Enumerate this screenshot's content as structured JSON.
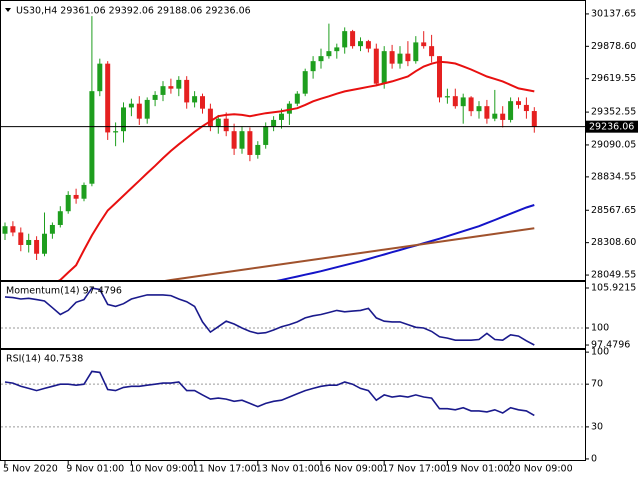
{
  "chart_data": [
    {
      "type": "candlestick",
      "title": "US30,H4  29361.06 29392.06 29188.06 29236.06",
      "categories": [
        "5 Nov 2020",
        null,
        null,
        null,
        null,
        null,
        null,
        null,
        "9 Nov 01:00",
        null,
        null,
        null,
        null,
        null,
        null,
        null,
        "10 Nov 09:00",
        null,
        null,
        null,
        null,
        null,
        null,
        null,
        "11 Nov 17:00",
        null,
        null,
        null,
        null,
        null,
        null,
        null,
        "13 Nov 01:00",
        null,
        null,
        null,
        null,
        null,
        null,
        null,
        "16 Nov 09:00",
        null,
        null,
        null,
        null,
        null,
        null,
        null,
        "17 Nov 17:00",
        null,
        null,
        null,
        null,
        null,
        null,
        null,
        "19 Nov 01:00",
        null,
        null,
        null,
        null,
        null,
        null,
        null,
        "20 Nov 09:00",
        null,
        null,
        null
      ],
      "open": [
        28380,
        28440,
        28390,
        28290,
        28330,
        28220,
        28380,
        28450,
        28560,
        28690,
        28660,
        28780,
        29520,
        29740,
        29190,
        29200,
        29390,
        29420,
        29300,
        29450,
        29490,
        29560,
        29540,
        29610,
        29430,
        29480,
        29380,
        29240,
        29300,
        29200,
        29060,
        29200,
        29010,
        29090,
        29240,
        29290,
        29340,
        29420,
        29500,
        29680,
        29760,
        29800,
        29840,
        29870,
        30000,
        29880,
        29920,
        29860,
        29580,
        29840,
        29740,
        29820,
        29760,
        29910,
        29880,
        29800,
        29470,
        29480,
        29400,
        29470,
        29360,
        29400,
        29300,
        29340,
        29290,
        29440,
        29410,
        29361.06
      ],
      "high": [
        28470,
        28480,
        28430,
        28380,
        28360,
        28550,
        28470,
        28600,
        28720,
        28740,
        28790,
        30120,
        29780,
        29760,
        29270,
        29430,
        29460,
        29480,
        29470,
        29520,
        29600,
        29620,
        29640,
        29640,
        29520,
        29500,
        29420,
        29330,
        29350,
        29260,
        29240,
        29230,
        29120,
        29270,
        29320,
        29380,
        29440,
        29520,
        29700,
        29800,
        29860,
        30060,
        29900,
        30030,
        30010,
        29950,
        29930,
        29900,
        29880,
        29890,
        29880,
        29920,
        29960,
        30000,
        29970,
        29800,
        29540,
        29540,
        29500,
        29480,
        29440,
        29450,
        29530,
        29400,
        29470,
        29470,
        29470,
        29392.06
      ],
      "low": [
        28330,
        28360,
        28240,
        28230,
        28170,
        28200,
        28340,
        28430,
        28540,
        28620,
        28640,
        28760,
        29480,
        29130,
        29080,
        29110,
        29320,
        29250,
        29260,
        29400,
        29440,
        29500,
        29480,
        29380,
        29390,
        29340,
        29200,
        29180,
        29160,
        29010,
        29020,
        28960,
        28980,
        29060,
        29200,
        29220,
        29250,
        29400,
        29480,
        29620,
        29700,
        29780,
        29780,
        29820,
        29860,
        29840,
        29830,
        29560,
        29540,
        29700,
        29700,
        29720,
        29740,
        29860,
        29750,
        29430,
        29420,
        29380,
        29260,
        29320,
        29300,
        29260,
        29280,
        29230,
        29270,
        29380,
        29300,
        29188.06
      ],
      "close": [
        28440,
        28390,
        28290,
        28330,
        28220,
        28380,
        28450,
        28560,
        28690,
        28660,
        28770,
        29520,
        29740,
        29190,
        29200,
        29390,
        29420,
        29300,
        29450,
        29490,
        29560,
        29540,
        29610,
        29430,
        29480,
        29380,
        29240,
        29300,
        29200,
        29060,
        29200,
        29010,
        29090,
        29240,
        29290,
        29340,
        29420,
        29500,
        29680,
        29760,
        29800,
        29840,
        29870,
        30000,
        29880,
        29920,
        29860,
        29580,
        29840,
        29740,
        29820,
        29760,
        29910,
        29880,
        29800,
        29470,
        29480,
        29400,
        29470,
        29360,
        29400,
        29300,
        29340,
        29290,
        29440,
        29410,
        29361.06,
        29236.06
      ],
      "up_color": "#1e9e1e",
      "down_color": "#e52020",
      "overlays": [
        {
          "color": "#e81010",
          "values": [
            27800,
            27830,
            27860,
            27890,
            27920,
            27950,
            27980,
            28010,
            28070,
            28128,
            28250,
            28367,
            28470,
            28566,
            28625,
            28685,
            28745,
            28804,
            28865,
            28923,
            28985,
            29042,
            29095,
            29145,
            29195,
            29240,
            29280,
            29320,
            29330,
            29336,
            29330,
            29320,
            29332,
            29344,
            29352,
            29360,
            29372,
            29384,
            29410,
            29439,
            29460,
            29479,
            29500,
            29518,
            29530,
            29542,
            29555,
            29566,
            29582,
            29598,
            29618,
            29637,
            29680,
            29717,
            29740,
            29756,
            29750,
            29741,
            29718,
            29693,
            29665,
            29637,
            29618,
            29598,
            29570,
            29542,
            29530,
            29518
          ]
        },
        {
          "color": "#1414c8",
          "values": [
            27590,
            27602,
            27614,
            27626,
            27638,
            27650,
            27662,
            27674,
            27686,
            27698,
            27710,
            27722,
            27734,
            27746,
            27758,
            27770,
            27782,
            27794,
            27806,
            27818,
            27830,
            27842,
            27854,
            27866,
            27878,
            27890,
            27902,
            27914,
            27926,
            27938,
            27950,
            27962,
            27974,
            27986,
            27998,
            28010,
            28024,
            28038,
            28052,
            28066,
            28080,
            28096,
            28112,
            28128,
            28144,
            28160,
            28178,
            28196,
            28214,
            28232,
            28250,
            28268,
            28286,
            28304,
            28322,
            28340,
            28360,
            28380,
            28400,
            28420,
            28440,
            28465,
            28490,
            28515,
            28540,
            28565,
            28590,
            28610
          ]
        },
        {
          "color": "#a0522d",
          "values": [
            27840,
            27848,
            27856,
            27864,
            27872,
            27880,
            27888,
            27896,
            27904,
            27912,
            27920,
            27928,
            27936,
            27944,
            27952,
            27960,
            27968,
            27976,
            27984,
            27992,
            28000,
            28010,
            28019,
            28028,
            28037,
            28046,
            28055,
            28064,
            28073,
            28082,
            28091,
            28100,
            28109,
            28118,
            28127,
            28136,
            28145,
            28154,
            28163,
            28172,
            28181,
            28190,
            28199,
            28208,
            28217,
            28226,
            28235,
            28244,
            28253,
            28262,
            28271,
            28280,
            28289,
            28298,
            28307,
            28316,
            28325,
            28334,
            28343,
            28352,
            28361,
            28370,
            28379,
            28388,
            28397,
            28406,
            28415,
            28424
          ]
        }
      ],
      "last_price": 29236.06,
      "ylim": [
        28010,
        30233
      ],
      "yticks": [
        30137.65,
        {
          "value": 29878.6,
          "label": "29878.60"
        },
        29619.55,
        29352.55,
        29090.05,
        28834.55,
        28567.65,
        {
          "value": 28308.6,
          "label": "28308.60"
        },
        28049.55
      ]
    },
    {
      "type": "line",
      "title": "Momentum(14) 97.4796",
      "color": "#1a1a8c",
      "values": [
        104.6,
        104.5,
        104.3,
        104.4,
        104.2,
        104.0,
        103.0,
        102.0,
        102.6,
        103.8,
        104.2,
        105.9,
        105.7,
        103.5,
        103.2,
        103.6,
        104.3,
        104.6,
        104.9,
        104.9,
        104.9,
        104.8,
        104.3,
        103.9,
        103.2,
        100.9,
        99.4,
        100.2,
        101.0,
        100.6,
        100.0,
        99.5,
        99.2,
        99.3,
        99.7,
        100.2,
        100.5,
        100.9,
        101.5,
        101.8,
        102.0,
        102.3,
        102.6,
        102.4,
        102.5,
        102.6,
        102.9,
        101.5,
        101.0,
        100.9,
        100.9,
        100.5,
        100.1,
        100.0,
        99.5,
        98.7,
        98.5,
        98.2,
        98.2,
        98.2,
        98.3,
        99.2,
        98.3,
        98.2,
        99.0,
        98.8,
        98.1,
        97.4796
      ],
      "levels": [
        100
      ],
      "ylim": [
        97.04,
        106.81
      ],
      "yticks": [
        105.9215,
        100,
        97.4796
      ]
    },
    {
      "type": "line",
      "title": "RSI(14) 40.7538",
      "color": "#1a1a8c",
      "values": [
        72,
        71,
        68,
        66,
        64,
        66,
        68,
        70,
        70,
        69,
        70,
        82,
        81,
        65,
        64,
        67,
        68,
        68,
        69,
        70,
        71,
        71,
        72,
        64,
        64,
        60,
        56,
        57,
        56,
        54,
        55,
        52,
        49,
        52,
        54,
        55,
        58,
        61,
        64,
        66,
        68,
        69,
        69,
        72,
        70,
        66,
        64,
        55,
        60,
        58,
        59,
        58,
        60,
        58,
        57,
        47,
        47,
        46,
        48,
        45,
        45,
        44,
        46,
        43,
        48,
        46,
        45,
        40.7538
      ],
      "levels": [
        70,
        30
      ],
      "ylim": [
        -1,
        102
      ],
      "yticks": [
        100,
        70,
        30,
        0
      ]
    }
  ]
}
